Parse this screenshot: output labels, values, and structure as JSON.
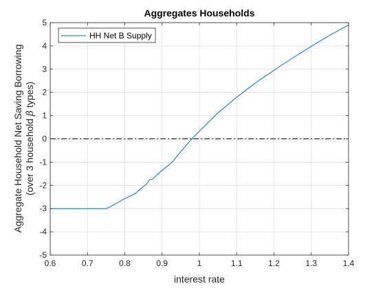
{
  "chart_data": {
    "type": "line",
    "title": "Aggregates Households",
    "xlabel": "interest rate",
    "ylabel_line1": "Aggregate Household Net Saving Borrowing",
    "ylabel_line2_pre": "(over 3 household ",
    "ylabel_line2_symbol": "β",
    "ylabel_line2_post": " types)",
    "xlim": [
      0.6,
      1.4
    ],
    "ylim": [
      -5,
      5
    ],
    "x_ticks": [
      0.6,
      0.7,
      0.8,
      0.9,
      1,
      1.1,
      1.2,
      1.3,
      1.4
    ],
    "x_tick_labels": [
      "0.6",
      "0.7",
      "0.8",
      "0.9",
      "1",
      "1.1",
      "1.2",
      "1.3",
      "1.4"
    ],
    "y_ticks": [
      -5,
      -4,
      -3,
      -2,
      -1,
      0,
      1,
      2,
      3,
      4,
      5
    ],
    "y_tick_labels": [
      "-5",
      "-4",
      "-3",
      "-2",
      "-1",
      "0",
      "1",
      "2",
      "3",
      "4",
      "5"
    ],
    "grid": true,
    "legend_position": "top-left",
    "series": [
      {
        "name": "HH Net B Supply",
        "color": "#0072BD",
        "x": [
          0.6,
          0.65,
          0.7,
          0.74,
          0.75,
          0.76,
          0.78,
          0.8,
          0.82,
          0.83,
          0.84,
          0.86,
          0.865,
          0.87,
          0.875,
          0.88,
          0.9,
          0.92,
          0.93,
          0.95,
          0.97,
          0.98,
          1.0,
          1.05,
          1.1,
          1.15,
          1.2,
          1.25,
          1.3,
          1.35,
          1.4
        ],
        "y": [
          -3.0,
          -3.0,
          -3.0,
          -3.0,
          -3.0,
          -2.93,
          -2.75,
          -2.57,
          -2.42,
          -2.33,
          -2.18,
          -1.92,
          -1.78,
          -1.75,
          -1.73,
          -1.65,
          -1.35,
          -1.1,
          -0.95,
          -0.55,
          -0.18,
          0.0,
          0.33,
          1.12,
          1.79,
          2.4,
          2.95,
          3.48,
          3.98,
          4.46,
          4.9
        ]
      },
      {
        "name": "",
        "color": "#000000",
        "dash": "dash-dot",
        "x": [
          0.6,
          1.4
        ],
        "y": [
          0,
          0
        ]
      }
    ]
  }
}
